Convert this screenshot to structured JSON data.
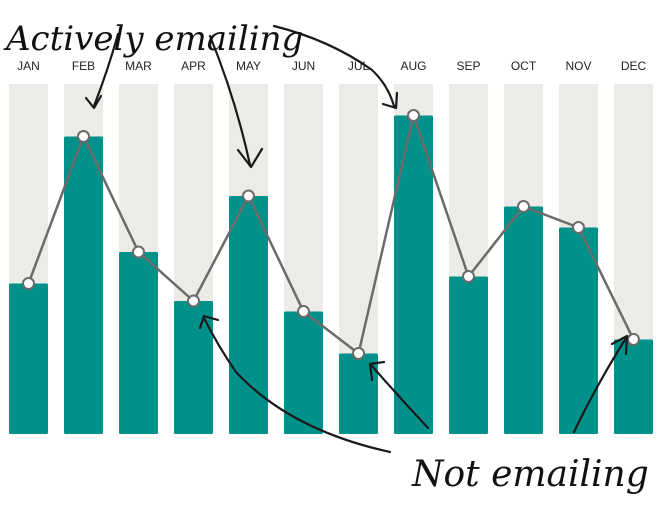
{
  "chart_data": {
    "type": "bar",
    "categories": [
      "JAN",
      "FEB",
      "MAR",
      "APR",
      "MAY",
      "JUN",
      "JUL",
      "AUG",
      "SEP",
      "OCT",
      "NOV",
      "DEC"
    ],
    "values": [
      43,
      85,
      52,
      38,
      68,
      35,
      23,
      91,
      45,
      65,
      59,
      27
    ],
    "line_values": [
      43,
      85,
      52,
      38,
      68,
      35,
      23,
      91,
      45,
      65,
      59,
      27
    ],
    "ylim": [
      0,
      100
    ],
    "grid": false,
    "title": "",
    "xlabel": "",
    "ylabel": "",
    "colors": {
      "bar": "#00918a",
      "background_column": "#edebe7",
      "line": "#6b6b6b",
      "marker_fill": "#ffffff"
    },
    "annotations": [
      {
        "text": "Actively emailing",
        "points_to": [
          "FEB",
          "MAY",
          "AUG"
        ]
      },
      {
        "text": "Not emailing",
        "points_to": [
          "APR",
          "JUL",
          "DEC"
        ]
      }
    ]
  }
}
